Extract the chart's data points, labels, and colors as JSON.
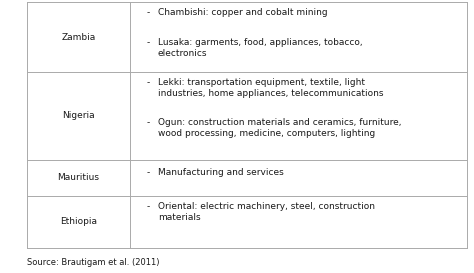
{
  "rows": [
    {
      "country": "Zambia",
      "bullets": [
        "Chambishi: copper and cobalt mining",
        "Lusaka: garments, food, appliances, tobacco,\nelectronics"
      ]
    },
    {
      "country": "Nigeria",
      "bullets": [
        "Lekki: transportation equipment, textile, light\nindustries, home appliances, telecommunications",
        "Ogun: construction materials and ceramics, furniture,\nwood processing, medicine, computers, lighting"
      ]
    },
    {
      "country": "Mauritius",
      "bullets": [
        "Manufacturing and services"
      ]
    },
    {
      "country": "Ethiopia",
      "bullets": [
        "Oriental: electric machinery, steel, construction\nmaterials"
      ]
    }
  ],
  "source_text": "Source: Brautigam et al. (2011)",
  "bg_color": "#ffffff",
  "text_color": "#1a1a1a",
  "line_color": "#aaaaaa",
  "font_size": 6.5,
  "source_font_size": 6.0,
  "bullet_char": "-"
}
